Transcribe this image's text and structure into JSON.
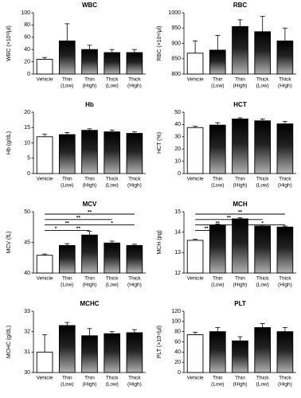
{
  "chart_data": [
    {
      "type": "bar",
      "title": "WBC",
      "ylabel": "WBC (×10³/μl)",
      "categories": [
        [
          "Vehicle"
        ],
        [
          "Thin",
          "(Low)"
        ],
        [
          "Thin",
          "(High)"
        ],
        [
          "Thick",
          "(Low)"
        ],
        [
          "Thick",
          "(High)"
        ]
      ],
      "values": [
        24,
        54,
        40,
        35,
        35
      ],
      "errors": [
        3,
        28,
        7,
        5,
        5
      ],
      "ylim": [
        0,
        100
      ],
      "yticks": [
        0,
        20,
        40,
        60,
        80,
        100
      ]
    },
    {
      "type": "bar",
      "title": "RBC",
      "ylabel": "RBC (×10⁴/μl)",
      "categories": [
        [
          "Vehicle"
        ],
        [
          "Thin",
          "(Low)"
        ],
        [
          "Thin",
          "(High)"
        ],
        [
          "Thick",
          "(Low)"
        ],
        [
          "Thick",
          "(High)"
        ]
      ],
      "values": [
        868,
        878,
        955,
        938,
        908
      ],
      "errors": [
        40,
        48,
        22,
        50,
        42
      ],
      "ylim": [
        800,
        1000
      ],
      "yticks": [
        800,
        850,
        900,
        950,
        1000
      ]
    },
    {
      "type": "bar",
      "title": "Hb",
      "ylabel": "Hb (g/dL)",
      "categories": [
        [
          "Vehicle"
        ],
        [
          "Thin",
          "(Low)"
        ],
        [
          "Thin",
          "(High)"
        ],
        [
          "Thick",
          "(Low)"
        ],
        [
          "Thick",
          "(High)"
        ]
      ],
      "values": [
        12,
        12.7,
        14.1,
        13.6,
        13.1
      ],
      "errors": [
        0.8,
        0.7,
        0.5,
        0.6,
        0.5
      ],
      "ylim": [
        0,
        20
      ],
      "yticks": [
        0,
        5,
        10,
        15,
        20
      ]
    },
    {
      "type": "bar",
      "title": "HCT",
      "ylabel": "HCT (%)",
      "categories": [
        [
          "Vehicle"
        ],
        [
          "Thin",
          "(Low)"
        ],
        [
          "Thin",
          "(High)"
        ],
        [
          "Thick",
          "(Low)"
        ],
        [
          "Thick",
          "(High)"
        ]
      ],
      "values": [
        37.5,
        39.5,
        44.5,
        43,
        40.5
      ],
      "errors": [
        1,
        2,
        1,
        1.5,
        2
      ],
      "ylim": [
        0,
        50
      ],
      "yticks": [
        0,
        10,
        20,
        30,
        40,
        50
      ]
    },
    {
      "type": "bar",
      "title": "MCV",
      "ylabel": "MCV (fL)",
      "categories": [
        [
          "Vehicle"
        ],
        [
          "Thin",
          "(Low)"
        ],
        [
          "Thin",
          "(High)"
        ],
        [
          "Thick",
          "(Low)"
        ],
        [
          "Thick",
          "(High)"
        ]
      ],
      "values": [
        42.9,
        44.5,
        46.2,
        44.9,
        44.5
      ],
      "errors": [
        0.2,
        0.3,
        0.6,
        0.3,
        0.2
      ],
      "ylim": [
        40,
        50
      ],
      "yticks": [
        40,
        45,
        50
      ],
      "significance": [
        {
          "from": 0,
          "to": 4,
          "label": "**"
        },
        {
          "from": 0,
          "to": 3,
          "label": "**"
        },
        {
          "from": 0,
          "to": 2,
          "label": "**"
        },
        {
          "from": 2,
          "to": 4,
          "label": "*"
        },
        {
          "from": 1,
          "to": 2,
          "label": "**"
        },
        {
          "from": 0,
          "to": 1,
          "label": "*"
        }
      ]
    },
    {
      "type": "bar",
      "title": "MCH",
      "ylabel": "MCH (pg)",
      "categories": [
        [
          "Vehicle"
        ],
        [
          "Thin",
          "(Low)"
        ],
        [
          "Thin",
          "(High)"
        ],
        [
          "Thick",
          "(Low)"
        ],
        [
          "Thick",
          "(High)"
        ]
      ],
      "values": [
        13.6,
        14.35,
        14.65,
        14.3,
        14.25
      ],
      "errors": [
        0.05,
        0.05,
        0.05,
        0.05,
        0.05
      ],
      "ylim": [
        12,
        15
      ],
      "yticks": [
        12,
        13,
        14,
        15
      ],
      "significance": [
        {
          "from": 0,
          "to": 4,
          "label": "**"
        },
        {
          "from": 0,
          "to": 3,
          "label": "**"
        },
        {
          "from": 0,
          "to": 2,
          "label": "**"
        },
        {
          "from": 2,
          "to": 4,
          "label": "*"
        },
        {
          "from": 0,
          "to": 1,
          "label": "**"
        }
      ]
    },
    {
      "type": "bar",
      "title": "MCHC",
      "ylabel": "MCHC (g/dL)",
      "categories": [
        [
          "Vehicle"
        ],
        [
          "Thin",
          "(Low)"
        ],
        [
          "Thin",
          "(High)"
        ],
        [
          "Thick",
          "(Low)"
        ],
        [
          "Thick",
          "(High)"
        ]
      ],
      "values": [
        31.0,
        32.3,
        31.8,
        31.9,
        31.95
      ],
      "errors": [
        0.85,
        0.15,
        0.35,
        0.1,
        0.15
      ],
      "ylim": [
        30,
        33
      ],
      "yticks": [
        30,
        31,
        32,
        33
      ]
    },
    {
      "type": "bar",
      "title": "PLT",
      "ylabel": "PLT (×10⁴/μl)",
      "categories": [
        [
          "Vehicle"
        ],
        [
          "Thin",
          "(Low)"
        ],
        [
          "Thin",
          "(High)"
        ],
        [
          "Thick",
          "(Low)"
        ],
        [
          "Thick",
          "(High)"
        ]
      ],
      "values": [
        74,
        80,
        62,
        88,
        80
      ],
      "errors": [
        5,
        8,
        8,
        8,
        8
      ],
      "ylim": [
        0,
        120
      ],
      "yticks": [
        0,
        20,
        40,
        60,
        80,
        100,
        120
      ]
    }
  ]
}
